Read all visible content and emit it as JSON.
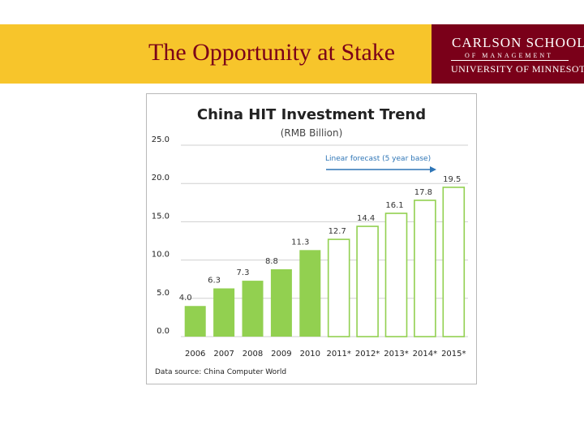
{
  "slide": {
    "title": "The Opportunity at Stake",
    "logo": {
      "line1": "CARLSON SCHOOL",
      "line2": "OF MANAGEMENT",
      "line3": "UNIVERSITY OF MINNESOTA"
    }
  },
  "chart_data": {
    "type": "bar",
    "title": "China HIT Investment Trend",
    "subtitle": "(RMB Billion)",
    "categories": [
      "2006",
      "2007",
      "2008",
      "2009",
      "2010",
      "2011*",
      "2012*",
      "2013*",
      "2014*",
      "2015*"
    ],
    "values": [
      4.0,
      6.3,
      7.3,
      8.8,
      11.3,
      12.7,
      14.4,
      16.1,
      17.8,
      19.5
    ],
    "value_labels": [
      "4.0",
      "6.3",
      "7.3",
      "8.8",
      "11.3",
      "12.7",
      "14.4",
      "16.1",
      "17.8",
      "19.5"
    ],
    "forecast_from_index": 5,
    "yticks": [
      "0.0",
      "5.0",
      "10.0",
      "15.0",
      "20.0",
      "25.0"
    ],
    "ylim": [
      0,
      25
    ],
    "annotation": "Linear forecast (5 year base)",
    "source": "Data source:  China Computer  World",
    "colors": {
      "actual": "#92d050",
      "forecast_fill": "#ffffff",
      "forecast_border": "#92d050",
      "arrow": "#2e75b6",
      "annotation": "#2e75b6"
    }
  }
}
